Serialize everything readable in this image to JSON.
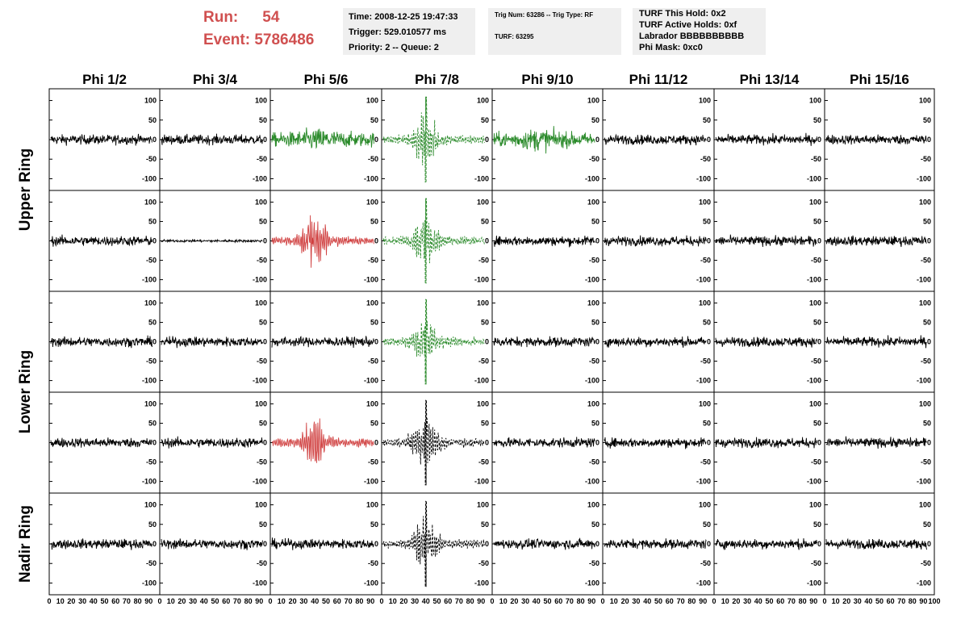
{
  "header": {
    "run_label": "Run:",
    "run_value": "54",
    "event_label": "Event:",
    "event_value": "5786486",
    "time_line": "Time: 2008-12-25 19:47:33",
    "trigger_line": "Trigger: 529.010577 ms",
    "priority_line": "Priority: 2 -- Queue: 2",
    "trig_line": "Trig Num: 63286 -- Trig Type: RF",
    "turf_line": "TURF: 63295",
    "hold_line": "TURF This Hold: 0x2",
    "active_line": "TURF Active Holds: 0xf",
    "labrador_line": "Labrador BBBBBBBBBB",
    "phimask_line": "Phi Mask: 0xc0"
  },
  "colors": {
    "normal": "#000000",
    "triggered": "#2a8a2a",
    "held": "#d04040",
    "header_red": "#d05050",
    "box_bg": "#efefef"
  },
  "chart_data": {
    "type": "line",
    "title": "",
    "columns": [
      "Phi 1/2",
      "Phi 3/4",
      "Phi 5/6",
      "Phi 7/8",
      "Phi 9/10",
      "Phi 11/12",
      "Phi 13/14",
      "Phi 15/16"
    ],
    "rows": [
      "Upper Ring",
      "",
      "Lower Ring",
      "",
      "Nadir Ring"
    ],
    "ylim": [
      -130,
      130
    ],
    "yticks": [
      -100,
      -50,
      0,
      50,
      100
    ],
    "xlim": [
      0,
      100
    ],
    "xtick_labels": [
      "0",
      "10",
      "20",
      "30",
      "40",
      "50",
      "60",
      "70",
      "80",
      "90",
      "100"
    ],
    "grid": false,
    "panels": [
      [
        "normal",
        "normal",
        "triggered",
        "triggered-dashed",
        "triggered",
        "normal",
        "normal",
        "normal"
      ],
      [
        "normal",
        "quiet",
        "held",
        "triggered-dashed",
        "normal",
        "normal",
        "normal",
        "normal"
      ],
      [
        "normal",
        "normal",
        "normal",
        "triggered-dashed",
        "normal",
        "normal",
        "normal",
        "normal"
      ],
      [
        "normal",
        "normal",
        "held",
        "dashed",
        "normal",
        "normal",
        "normal",
        "normal"
      ],
      [
        "normal",
        "normal",
        "normal",
        "dashed",
        "normal",
        "normal",
        "normal",
        "normal"
      ]
    ]
  }
}
